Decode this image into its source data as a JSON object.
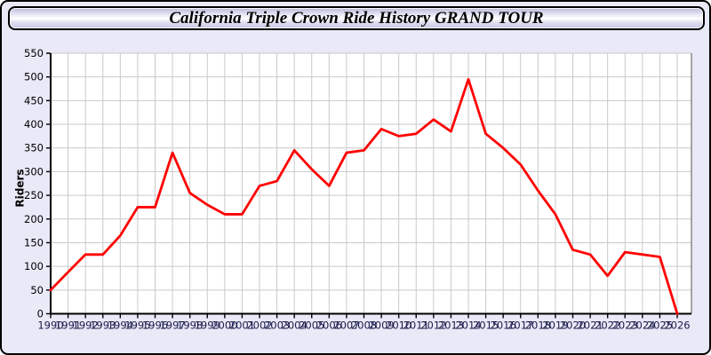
{
  "title_bar": {
    "title": "California Triple Crown Ride History GRAND TOUR"
  },
  "colors": {
    "page_background": "#e9e9f7",
    "titlebar_border": "#000000",
    "plot_background": "#ffffff",
    "grid": "#c9c9c9",
    "axis": "#000000",
    "plot_right_border": "#555555",
    "line": "#ff0000",
    "x_tick_label": "#1a1a4a",
    "y_tick_label": "#000000"
  },
  "chart_data": {
    "type": "line",
    "title": "California Triple Crown Ride History GRAND TOUR",
    "xlabel": "",
    "ylabel": "Riders",
    "ylim": [
      0,
      550
    ],
    "y_tick_step": 50,
    "y_ticks": [
      0,
      50,
      100,
      150,
      200,
      250,
      300,
      350,
      400,
      450,
      500,
      550
    ],
    "grid": true,
    "legend": false,
    "categories": [
      "1990",
      "1991",
      "1992",
      "1993",
      "1994",
      "1995",
      "1996",
      "1997",
      "1998",
      "1999",
      "2000",
      "2001",
      "2002",
      "2003",
      "2004",
      "2005",
      "2006",
      "2007",
      "2008",
      "2009",
      "2010",
      "2011",
      "2012",
      "2013",
      "2014",
      "2015",
      "2016",
      "2017",
      "2018",
      "2019",
      "2020",
      "2021",
      "2022",
      "2023",
      "2024",
      "2025",
      "2026"
    ],
    "series": [
      {
        "name": "Riders",
        "color": "#ff0000",
        "values": [
          50,
          88,
          125,
          125,
          165,
          225,
          225,
          340,
          255,
          230,
          210,
          210,
          270,
          280,
          345,
          305,
          270,
          340,
          345,
          390,
          375,
          380,
          410,
          385,
          495,
          380,
          350,
          315,
          260,
          210,
          135,
          125,
          80,
          130,
          125,
          120,
          0
        ]
      }
    ]
  }
}
